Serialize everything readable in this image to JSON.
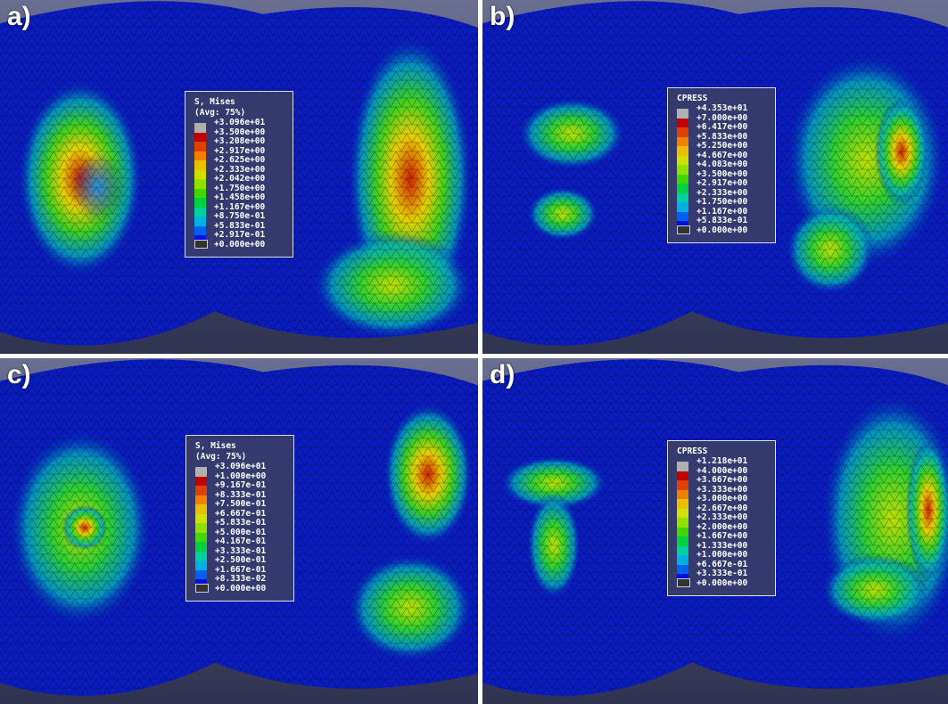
{
  "panels": [
    {
      "label": "a)",
      "legend": {
        "title": "S, Mises",
        "subtitle": "(Avg: 75%)",
        "values": [
          "+3.096e+01",
          "+3.500e+00",
          "+3.208e+00",
          "+2.917e+00",
          "+2.625e+00",
          "+2.333e+00",
          "+2.042e+00",
          "+1.750e+00",
          "+1.458e+00",
          "+1.167e+00",
          "+8.750e-01",
          "+5.833e-01",
          "+2.917e-01",
          "+0.000e+00"
        ]
      }
    },
    {
      "label": "b)",
      "legend": {
        "title": "CPRESS",
        "values": [
          "+4.353e+01",
          "+7.000e+00",
          "+6.417e+00",
          "+5.833e+00",
          "+5.250e+00",
          "+4.667e+00",
          "+4.083e+00",
          "+3.500e+00",
          "+2.917e+00",
          "+2.333e+00",
          "+1.750e+00",
          "+1.167e+00",
          "+5.833e-01",
          "+0.000e+00"
        ]
      }
    },
    {
      "label": "c)",
      "legend": {
        "title": "S, Mises",
        "subtitle": "(Avg: 75%)",
        "values": [
          "+3.096e+01",
          "+1.000e+00",
          "+9.167e-01",
          "+8.333e-01",
          "+7.500e-01",
          "+6.667e-01",
          "+5.833e-01",
          "+5.000e-01",
          "+4.167e-01",
          "+3.333e-01",
          "+2.500e-01",
          "+1.667e-01",
          "+8.333e-02",
          "+0.000e+00"
        ]
      }
    },
    {
      "label": "d)",
      "legend": {
        "title": "CPRESS",
        "values": [
          "+1.218e+01",
          "+4.000e+00",
          "+3.667e+00",
          "+3.333e+00",
          "+3.000e+00",
          "+2.667e+00",
          "+2.333e+00",
          "+2.000e+00",
          "+1.667e+00",
          "+1.333e+00",
          "+1.000e+00",
          "+6.667e-01",
          "+3.333e-01",
          "+0.000e+00"
        ]
      }
    }
  ]
}
